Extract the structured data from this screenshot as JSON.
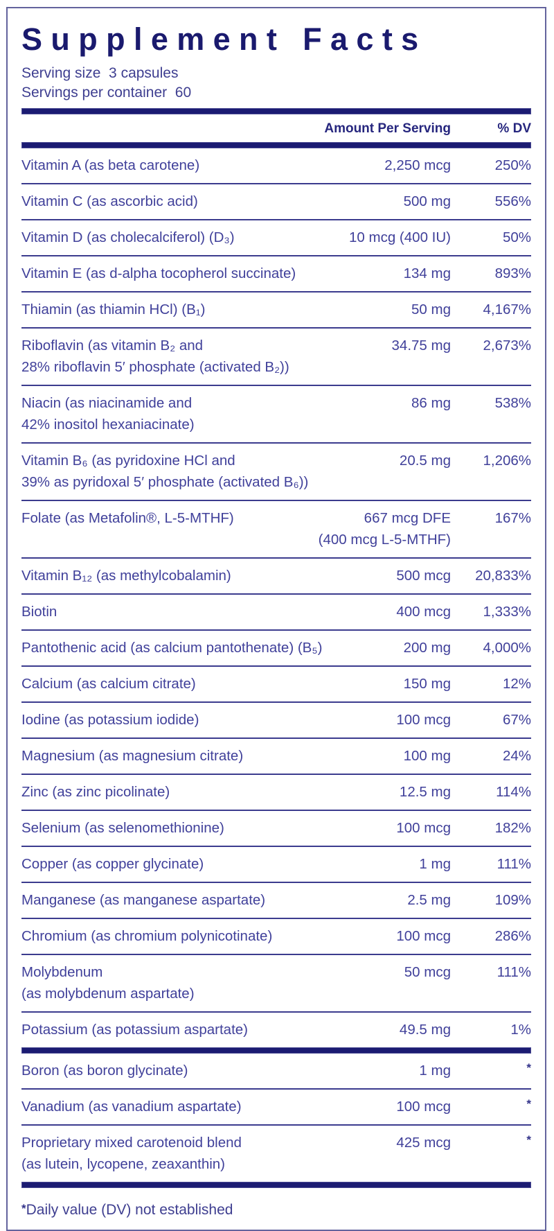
{
  "title": "Supplement Facts",
  "serving": {
    "size_line": "Serving size  3 capsules",
    "container_line": "Servings per container  60"
  },
  "columns": {
    "amount": "Amount Per Serving",
    "dv": "% DV"
  },
  "rows": [
    {
      "name": [
        "Vitamin A (as beta carotene)"
      ],
      "amount": [
        "2,250 mcg"
      ],
      "dv": "250%"
    },
    {
      "name": [
        "Vitamin C (as ascorbic acid)"
      ],
      "amount": [
        "500 mg"
      ],
      "dv": "556%"
    },
    {
      "name": [
        "Vitamin D (as cholecalciferol) (D₃)"
      ],
      "amount": [
        "10 mcg (400 IU)"
      ],
      "dv": "50%"
    },
    {
      "name": [
        "Vitamin E (as d-alpha tocopherol succinate)"
      ],
      "amount": [
        "134 mg"
      ],
      "dv": "893%"
    },
    {
      "name": [
        "Thiamin (as thiamin HCl) (B₁)"
      ],
      "amount": [
        "50 mg"
      ],
      "dv": "4,167%"
    },
    {
      "name": [
        "Riboflavin (as vitamin B₂ and",
        "28% riboflavin 5′ phosphate (activated B₂))"
      ],
      "amount": [
        "34.75 mg"
      ],
      "dv": "2,673%"
    },
    {
      "name": [
        "Niacin (as niacinamide and",
        "42% inositol hexaniacinate)"
      ],
      "amount": [
        "86 mg"
      ],
      "dv": "538%"
    },
    {
      "name": [
        "Vitamin B₆ (as pyridoxine HCl and",
        "39% as pyridoxal 5′ phosphate (activated B₆))"
      ],
      "amount": [
        "20.5 mg"
      ],
      "dv": "1,206%"
    },
    {
      "name": [
        "Folate (as Metafolin®, L-5-MTHF)"
      ],
      "amount": [
        "667 mcg DFE",
        "(400 mcg L-5-MTHF)"
      ],
      "dv": "167%"
    },
    {
      "name": [
        "Vitamin B₁₂ (as methylcobalamin)"
      ],
      "amount": [
        "500 mcg"
      ],
      "dv": "20,833%"
    },
    {
      "name": [
        "Biotin"
      ],
      "amount": [
        "400 mcg"
      ],
      "dv": "1,333%"
    },
    {
      "name": [
        "Pantothenic acid (as calcium pantothenate) (B₅)"
      ],
      "amount": [
        "200 mg"
      ],
      "dv": "4,000%"
    },
    {
      "name": [
        "Calcium (as calcium citrate)"
      ],
      "amount": [
        "150 mg"
      ],
      "dv": "12%"
    },
    {
      "name": [
        "Iodine (as potassium iodide)"
      ],
      "amount": [
        "100 mcg"
      ],
      "dv": "67%"
    },
    {
      "name": [
        "Magnesium (as magnesium citrate)"
      ],
      "amount": [
        "100 mg"
      ],
      "dv": "24%"
    },
    {
      "name": [
        "Zinc (as zinc picolinate)"
      ],
      "amount": [
        "12.5 mg"
      ],
      "dv": "114%"
    },
    {
      "name": [
        "Selenium (as selenomethionine)"
      ],
      "amount": [
        "100 mcg"
      ],
      "dv": "182%"
    },
    {
      "name": [
        "Copper (as copper glycinate)"
      ],
      "amount": [
        "1 mg"
      ],
      "dv": "111%"
    },
    {
      "name": [
        "Manganese (as manganese aspartate)"
      ],
      "amount": [
        "2.5 mg"
      ],
      "dv": "109%"
    },
    {
      "name": [
        "Chromium (as chromium polynicotinate)"
      ],
      "amount": [
        "100 mcg"
      ],
      "dv": "286%"
    },
    {
      "name": [
        "Molybdenum",
        "(as molybdenum aspartate)"
      ],
      "amount": [
        "50 mcg"
      ],
      "dv": "111%"
    },
    {
      "name": [
        "Potassium (as potassium aspartate)"
      ],
      "amount": [
        "49.5 mg"
      ],
      "dv": "1%"
    },
    {
      "thick_bar_before": true,
      "name": [
        "Boron (as boron glycinate)"
      ],
      "amount": [
        "1 mg"
      ],
      "dv": "*"
    },
    {
      "name": [
        "Vanadium (as vanadium aspartate)"
      ],
      "amount": [
        "100 mcg"
      ],
      "dv": "*"
    },
    {
      "name": [
        "Proprietary mixed carotenoid blend",
        "(as lutein, lycopene, zeaxanthin)"
      ],
      "amount": [
        "425 mcg"
      ],
      "dv": "*"
    }
  ],
  "footnote": {
    "marker": "*",
    "text": "Daily value (DV) not established"
  },
  "colors": {
    "navy_dark": "#1a1a6e",
    "body_text": "#40409a",
    "separator": "#3b3b8e",
    "outer_border": "#63639d"
  }
}
